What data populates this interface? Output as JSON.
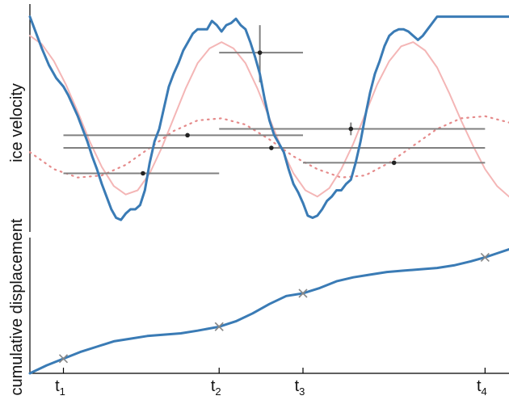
{
  "chart_data": [
    {
      "type": "line",
      "ylabel": "ice velocity",
      "xlabel": "",
      "title": "",
      "xlim": [
        0,
        1
      ],
      "ylim": [
        0,
        1
      ],
      "grid": false,
      "legend": "none",
      "colors": {
        "observed": "#3a7bb5",
        "fit": "#f4b6b6",
        "fit_shifted": "#e58a8a",
        "bars": "#808080",
        "points": "#222222"
      },
      "series": [
        {
          "style": "solid-thick",
          "x": [
            0.0,
            0.01,
            0.025,
            0.04,
            0.055,
            0.07,
            0.08,
            0.09,
            0.1,
            0.11,
            0.12,
            0.13,
            0.14,
            0.15,
            0.16,
            0.17,
            0.18,
            0.19,
            0.2,
            0.21,
            0.22,
            0.23,
            0.24,
            0.25,
            0.26,
            0.27,
            0.28,
            0.29,
            0.3,
            0.31,
            0.32,
            0.33,
            0.34,
            0.35,
            0.36,
            0.37,
            0.38,
            0.39,
            0.4,
            0.41,
            0.42,
            0.43,
            0.44,
            0.45,
            0.46,
            0.47,
            0.48,
            0.49,
            0.5,
            0.51,
            0.52,
            0.53,
            0.54,
            0.55,
            0.56,
            0.57,
            0.58,
            0.59,
            0.6,
            0.61,
            0.62,
            0.63,
            0.64,
            0.65,
            0.66,
            0.67,
            0.68,
            0.69,
            0.7,
            0.71,
            0.72,
            0.73,
            0.74,
            0.75,
            0.76,
            0.77,
            0.78,
            0.79,
            0.8,
            0.81,
            0.82,
            0.83,
            0.84,
            0.85,
            0.86,
            0.87,
            0.88,
            0.89,
            0.9,
            0.91,
            0.92,
            0.93,
            0.94,
            0.95,
            0.96,
            0.97,
            0.98,
            0.99,
            1.0
          ],
          "y": [
            0.99,
            0.93,
            0.84,
            0.76,
            0.7,
            0.66,
            0.62,
            0.57,
            0.52,
            0.46,
            0.4,
            0.33,
            0.27,
            0.2,
            0.14,
            0.08,
            0.04,
            0.03,
            0.06,
            0.08,
            0.08,
            0.1,
            0.17,
            0.3,
            0.4,
            0.46,
            0.56,
            0.66,
            0.72,
            0.77,
            0.83,
            0.87,
            0.91,
            0.93,
            0.93,
            0.93,
            0.97,
            0.95,
            0.92,
            0.95,
            0.96,
            0.98,
            0.95,
            0.93,
            0.87,
            0.8,
            0.72,
            0.6,
            0.5,
            0.43,
            0.39,
            0.35,
            0.27,
            0.2,
            0.16,
            0.11,
            0.05,
            0.04,
            0.05,
            0.08,
            0.12,
            0.14,
            0.17,
            0.17,
            0.2,
            0.22,
            0.3,
            0.4,
            0.52,
            0.63,
            0.72,
            0.78,
            0.85,
            0.9,
            0.92,
            0.93,
            0.93,
            0.92,
            0.9,
            0.88,
            0.9,
            0.93,
            0.96,
            0.99,
            0.99,
            0.99,
            0.99,
            0.99,
            0.99,
            0.99,
            0.99,
            0.99,
            0.99,
            0.99,
            0.99,
            0.99,
            0.99,
            0.99,
            0.99
          ]
        },
        {
          "style": "solid-thin",
          "x": [
            0.0,
            0.025,
            0.05,
            0.075,
            0.1,
            0.125,
            0.15,
            0.175,
            0.2,
            0.225,
            0.25,
            0.275,
            0.3,
            0.325,
            0.35,
            0.375,
            0.4,
            0.425,
            0.45,
            0.475,
            0.5,
            0.525,
            0.55,
            0.575,
            0.6,
            0.625,
            0.65,
            0.675,
            0.7,
            0.725,
            0.75,
            0.775,
            0.8,
            0.825,
            0.85,
            0.875,
            0.9,
            0.925,
            0.95,
            0.975,
            1.0
          ],
          "y": [
            0.9,
            0.86,
            0.78,
            0.67,
            0.54,
            0.4,
            0.28,
            0.19,
            0.15,
            0.17,
            0.25,
            0.37,
            0.51,
            0.65,
            0.77,
            0.84,
            0.87,
            0.84,
            0.77,
            0.65,
            0.51,
            0.37,
            0.25,
            0.17,
            0.14,
            0.18,
            0.27,
            0.39,
            0.53,
            0.67,
            0.78,
            0.85,
            0.87,
            0.83,
            0.75,
            0.63,
            0.5,
            0.38,
            0.27,
            0.19,
            0.14
          ]
        },
        {
          "style": "dotted",
          "x": [
            0.0,
            0.05,
            0.1,
            0.15,
            0.2,
            0.25,
            0.3,
            0.35,
            0.4,
            0.45,
            0.5,
            0.55,
            0.6,
            0.65,
            0.7,
            0.75,
            0.8,
            0.85,
            0.9,
            0.95,
            1.0
          ],
          "y": [
            0.35,
            0.27,
            0.23,
            0.24,
            0.29,
            0.37,
            0.45,
            0.5,
            0.51,
            0.48,
            0.41,
            0.33,
            0.27,
            0.23,
            0.24,
            0.3,
            0.38,
            0.46,
            0.51,
            0.52,
            0.49
          ]
        }
      ],
      "points": [
        {
          "x": 0.236,
          "y": 0.25,
          "xerr": [
            0.07,
            0.395
          ],
          "yerr": [
            0.25,
            0.25
          ]
        },
        {
          "x": 0.329,
          "y": 0.43,
          "xerr": [
            0.07,
            0.57
          ],
          "yerr": [
            0.43,
            0.43
          ]
        },
        {
          "x": 0.48,
          "y": 0.82,
          "xerr": [
            0.395,
            0.57
          ],
          "yerr": [
            0.68,
            0.95
          ]
        },
        {
          "x": 0.504,
          "y": 0.37,
          "xerr": [
            0.07,
            0.95
          ],
          "yerr": [
            0.37,
            0.37
          ]
        },
        {
          "x": 0.67,
          "y": 0.46,
          "xerr": [
            0.395,
            0.95
          ],
          "yerr": [
            0.43,
            0.49
          ]
        },
        {
          "x": 0.76,
          "y": 0.3,
          "xerr": [
            0.57,
            0.95
          ],
          "yerr": [
            0.3,
            0.3
          ]
        }
      ]
    },
    {
      "type": "line",
      "ylabel": "cumulative displacement",
      "xlabel": "",
      "title": "",
      "xlim": [
        0,
        1
      ],
      "ylim": [
        0,
        1
      ],
      "grid": false,
      "legend": "none",
      "categories": [
        "t1",
        "t2",
        "t3",
        "t4"
      ],
      "tick_labels": [
        {
          "base": "t",
          "sub": "1"
        },
        {
          "base": "t",
          "sub": "2"
        },
        {
          "base": "t",
          "sub": "3"
        },
        {
          "base": "t",
          "sub": "4"
        }
      ],
      "ticks_x": [
        0.07,
        0.395,
        0.57,
        0.95
      ],
      "series": [
        {
          "style": "solid",
          "x": [
            0.0,
            0.035,
            0.07,
            0.105,
            0.14,
            0.175,
            0.21,
            0.245,
            0.28,
            0.315,
            0.35,
            0.395,
            0.43,
            0.465,
            0.5,
            0.535,
            0.57,
            0.605,
            0.64,
            0.675,
            0.71,
            0.745,
            0.78,
            0.815,
            0.85,
            0.885,
            0.92,
            0.95,
            0.975,
            1.0
          ],
          "y": [
            0.0,
            0.06,
            0.11,
            0.16,
            0.2,
            0.24,
            0.26,
            0.28,
            0.29,
            0.3,
            0.32,
            0.35,
            0.39,
            0.45,
            0.52,
            0.58,
            0.6,
            0.64,
            0.69,
            0.72,
            0.74,
            0.76,
            0.77,
            0.78,
            0.79,
            0.81,
            0.84,
            0.87,
            0.9,
            0.93
          ]
        }
      ],
      "markers": [
        {
          "x": 0.07,
          "y": 0.11
        },
        {
          "x": 0.395,
          "y": 0.35
        },
        {
          "x": 0.57,
          "y": 0.6
        },
        {
          "x": 0.95,
          "y": 0.87
        }
      ]
    }
  ]
}
